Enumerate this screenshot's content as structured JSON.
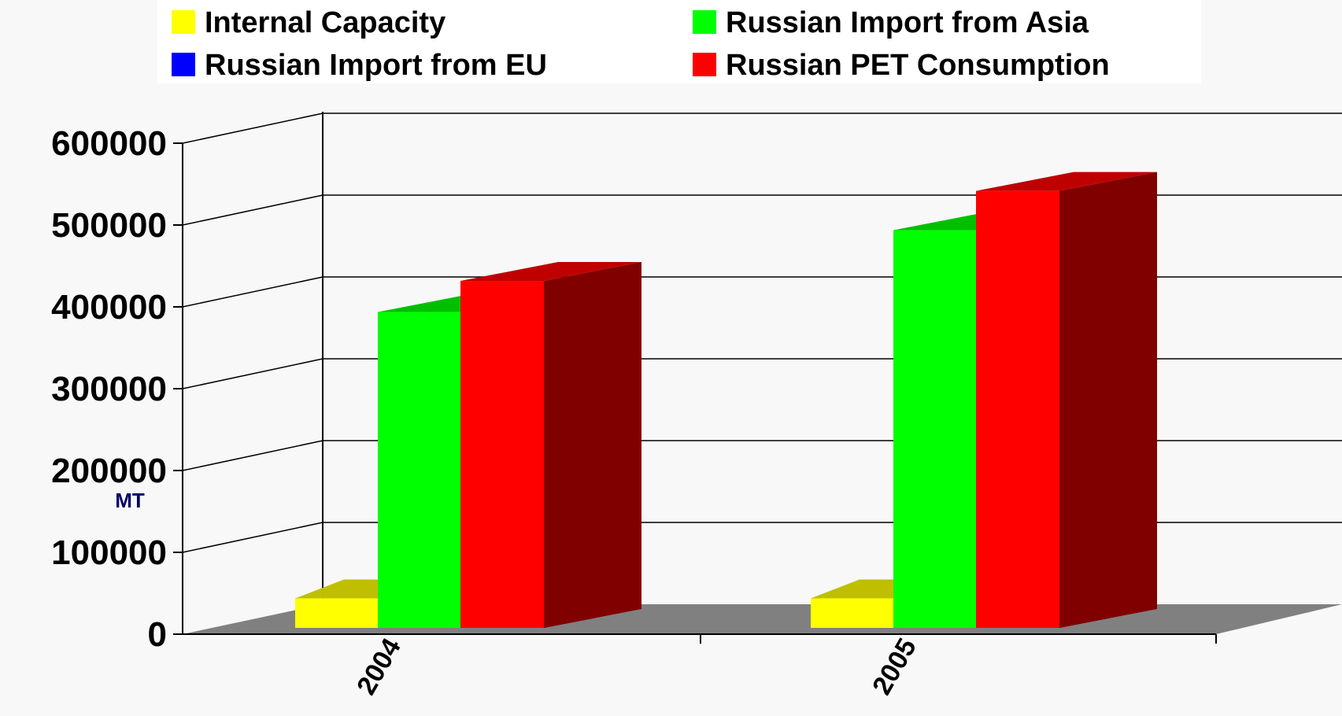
{
  "chart_data": {
    "type": "bar",
    "categories": [
      "2004",
      "2005"
    ],
    "series": [
      {
        "name": "Internal Capacity",
        "values": [
          36000,
          36000
        ]
      },
      {
        "name": "Russian Import from EU",
        "values": [
          3000,
          13000
        ]
      },
      {
        "name": "Russian Import from Asia",
        "values": [
          386000,
          486000
        ]
      },
      {
        "name": "Russian PET Consumption",
        "values": [
          424000,
          534000
        ]
      }
    ],
    "ylabel": "MT",
    "ylim": [
      0,
      600000
    ],
    "yticks": [
      "0",
      "100000",
      "200000",
      "300000",
      "400000",
      "500000",
      "600000"
    ],
    "grid": true,
    "legend_position": "top",
    "colors": {
      "Internal Capacity": "#ffff00",
      "Russian Import from EU": "#0000ff",
      "Russian Import from Asia": "#00ff00",
      "Russian PET Consumption": "#ff0000"
    }
  }
}
